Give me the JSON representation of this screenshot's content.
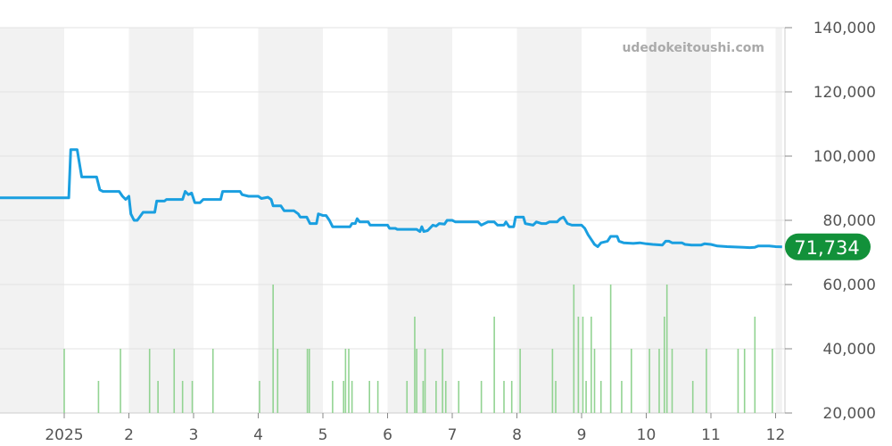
{
  "chart_data": {
    "type": "line",
    "title": "",
    "xlabel": "",
    "ylabel": "",
    "watermark": "udedokeitoushi.com",
    "ylim": [
      20000,
      140000
    ],
    "y_ticks": [
      "20,000",
      "40,000",
      "60,000",
      "80,000",
      "100,000",
      "120,000",
      "140,000"
    ],
    "y_tick_values": [
      20000,
      40000,
      60000,
      80000,
      100000,
      120000,
      140000
    ],
    "x_range": [
      -1.0,
      11.1
    ],
    "x_ticks": [
      "2025",
      "2",
      "3",
      "4",
      "5",
      "6",
      "7",
      "8",
      "9",
      "10",
      "11",
      "12"
    ],
    "x_tick_values": [
      0,
      1,
      2,
      3,
      4,
      5,
      6,
      7,
      8,
      9,
      10,
      11
    ],
    "grid": true,
    "colors": {
      "price_line": "#1a9fe0",
      "volume_bars": "#92d392",
      "badge": "#12913a",
      "band": "#f2f2f2"
    },
    "current_value_label": "71,734",
    "current_value": 71734,
    "series": [
      {
        "type": "line",
        "points": [
          [
            -1.0,
            87000
          ],
          [
            0.07,
            87000
          ],
          [
            0.1,
            102000
          ],
          [
            0.2,
            102000
          ],
          [
            0.27,
            93500
          ],
          [
            0.5,
            93500
          ],
          [
            0.55,
            89500
          ],
          [
            0.6,
            89000
          ],
          [
            0.85,
            89000
          ],
          [
            0.9,
            87500
          ],
          [
            0.95,
            86500
          ],
          [
            1.0,
            87500
          ],
          [
            1.03,
            82000
          ],
          [
            1.08,
            80000
          ],
          [
            1.13,
            80000
          ],
          [
            1.22,
            82500
          ],
          [
            1.4,
            82500
          ],
          [
            1.43,
            86000
          ],
          [
            1.55,
            86000
          ],
          [
            1.58,
            86500
          ],
          [
            1.83,
            86500
          ],
          [
            1.87,
            89000
          ],
          [
            1.92,
            88000
          ],
          [
            1.97,
            88500
          ],
          [
            2.02,
            85500
          ],
          [
            2.1,
            85500
          ],
          [
            2.15,
            86500
          ],
          [
            2.42,
            86500
          ],
          [
            2.45,
            89000
          ],
          [
            2.72,
            89000
          ],
          [
            2.75,
            88000
          ],
          [
            2.85,
            87500
          ],
          [
            3.0,
            87500
          ],
          [
            3.05,
            86800
          ],
          [
            3.15,
            87200
          ],
          [
            3.2,
            86500
          ],
          [
            3.23,
            84500
          ],
          [
            3.35,
            84500
          ],
          [
            3.4,
            83000
          ],
          [
            3.55,
            83000
          ],
          [
            3.62,
            82000
          ],
          [
            3.65,
            81000
          ],
          [
            3.75,
            81000
          ],
          [
            3.8,
            79000
          ],
          [
            3.9,
            79000
          ],
          [
            3.93,
            82000
          ],
          [
            4.0,
            81500
          ],
          [
            4.05,
            81500
          ],
          [
            4.1,
            80000
          ],
          [
            4.15,
            78000
          ],
          [
            4.42,
            78000
          ],
          [
            4.45,
            79000
          ],
          [
            4.5,
            79000
          ],
          [
            4.53,
            80500
          ],
          [
            4.57,
            79500
          ],
          [
            4.7,
            79500
          ],
          [
            4.73,
            78500
          ],
          [
            5.0,
            78500
          ],
          [
            5.03,
            77500
          ],
          [
            5.12,
            77500
          ],
          [
            5.15,
            77200
          ],
          [
            5.45,
            77200
          ],
          [
            5.5,
            76500
          ],
          [
            5.53,
            78000
          ],
          [
            5.56,
            76500
          ],
          [
            5.62,
            76800
          ],
          [
            5.7,
            78500
          ],
          [
            5.75,
            78200
          ],
          [
            5.8,
            79000
          ],
          [
            5.88,
            78800
          ],
          [
            5.92,
            80000
          ],
          [
            6.0,
            80000
          ],
          [
            6.05,
            79500
          ],
          [
            6.4,
            79500
          ],
          [
            6.45,
            78500
          ],
          [
            6.55,
            79500
          ],
          [
            6.65,
            79500
          ],
          [
            6.7,
            78500
          ],
          [
            6.8,
            78500
          ],
          [
            6.83,
            79500
          ],
          [
            6.88,
            78000
          ],
          [
            6.95,
            78000
          ],
          [
            6.98,
            81000
          ],
          [
            7.1,
            81000
          ],
          [
            7.13,
            79000
          ],
          [
            7.25,
            78500
          ],
          [
            7.3,
            79500
          ],
          [
            7.38,
            79000
          ],
          [
            7.45,
            79000
          ],
          [
            7.5,
            79500
          ],
          [
            7.62,
            79500
          ],
          [
            7.67,
            80500
          ],
          [
            7.72,
            81000
          ],
          [
            7.78,
            79000
          ],
          [
            7.85,
            78500
          ],
          [
            7.95,
            78500
          ],
          [
            8.0,
            78500
          ],
          [
            8.05,
            77500
          ],
          [
            8.1,
            75500
          ],
          [
            8.15,
            74000
          ],
          [
            8.2,
            72500
          ],
          [
            8.25,
            71800
          ],
          [
            8.3,
            73000
          ],
          [
            8.4,
            73500
          ],
          [
            8.45,
            75000
          ],
          [
            8.55,
            75000
          ],
          [
            8.58,
            73500
          ],
          [
            8.65,
            73000
          ],
          [
            8.8,
            72800
          ],
          [
            8.9,
            73000
          ],
          [
            9.0,
            72700
          ],
          [
            9.1,
            72500
          ],
          [
            9.25,
            72300
          ],
          [
            9.3,
            73500
          ],
          [
            9.35,
            73500
          ],
          [
            9.4,
            73000
          ],
          [
            9.55,
            73000
          ],
          [
            9.6,
            72500
          ],
          [
            9.7,
            72300
          ],
          [
            9.85,
            72300
          ],
          [
            9.9,
            72700
          ],
          [
            10.0,
            72500
          ],
          [
            10.1,
            72000
          ],
          [
            10.25,
            71800
          ],
          [
            10.5,
            71600
          ],
          [
            10.6,
            71500
          ],
          [
            10.68,
            71600
          ],
          [
            10.73,
            72000
          ],
          [
            10.9,
            72000
          ],
          [
            10.97,
            71900
          ],
          [
            11.0,
            71800
          ],
          [
            11.1,
            71734
          ]
        ]
      },
      {
        "type": "bar",
        "points": [
          [
            0.0,
            40000
          ],
          [
            0.53,
            30000
          ],
          [
            0.87,
            40000
          ],
          [
            1.32,
            40000
          ],
          [
            1.45,
            30000
          ],
          [
            1.7,
            40000
          ],
          [
            1.83,
            30000
          ],
          [
            1.98,
            30000
          ],
          [
            2.3,
            40000
          ],
          [
            3.02,
            30000
          ],
          [
            3.23,
            60000
          ],
          [
            3.3,
            40000
          ],
          [
            3.76,
            40000
          ],
          [
            3.79,
            40000
          ],
          [
            4.15,
            30000
          ],
          [
            4.32,
            30000
          ],
          [
            4.35,
            40000
          ],
          [
            4.4,
            40000
          ],
          [
            4.45,
            30000
          ],
          [
            4.72,
            30000
          ],
          [
            4.85,
            30000
          ],
          [
            5.3,
            30000
          ],
          [
            5.42,
            50000
          ],
          [
            5.45,
            40000
          ],
          [
            5.55,
            30000
          ],
          [
            5.58,
            40000
          ],
          [
            5.75,
            30000
          ],
          [
            5.85,
            40000
          ],
          [
            5.9,
            30000
          ],
          [
            6.1,
            30000
          ],
          [
            6.45,
            30000
          ],
          [
            6.65,
            50000
          ],
          [
            6.8,
            30000
          ],
          [
            6.92,
            30000
          ],
          [
            7.05,
            40000
          ],
          [
            7.55,
            40000
          ],
          [
            7.6,
            30000
          ],
          [
            7.88,
            60000
          ],
          [
            7.95,
            50000
          ],
          [
            8.02,
            50000
          ],
          [
            8.07,
            30000
          ],
          [
            8.15,
            50000
          ],
          [
            8.2,
            40000
          ],
          [
            8.3,
            30000
          ],
          [
            8.45,
            60000
          ],
          [
            8.62,
            30000
          ],
          [
            8.77,
            40000
          ],
          [
            9.05,
            40000
          ],
          [
            9.2,
            40000
          ],
          [
            9.28,
            50000
          ],
          [
            9.32,
            60000
          ],
          [
            9.4,
            40000
          ],
          [
            9.72,
            30000
          ],
          [
            9.93,
            40000
          ],
          [
            10.42,
            40000
          ],
          [
            10.52,
            40000
          ],
          [
            10.68,
            50000
          ],
          [
            10.95,
            40000
          ]
        ]
      }
    ]
  }
}
